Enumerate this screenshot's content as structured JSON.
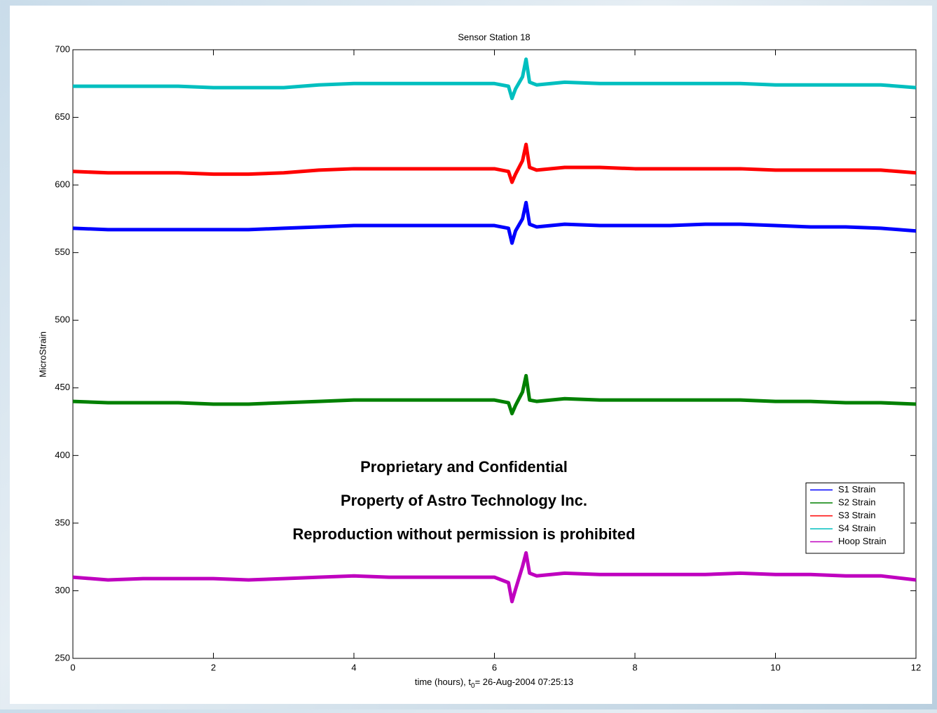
{
  "chart_data": {
    "type": "line",
    "title": "Sensor Station 18",
    "x_label_parts": [
      "time (hours), t",
      "0",
      "= 26-Aug-2004 07:25:13"
    ],
    "y_label": "MicroStrain",
    "annotations": [
      "Proprietary and Confidential",
      "Property of Astro Technology Inc.",
      "Reproduction without permission is prohibited"
    ],
    "x": [
      0,
      0.5,
      1,
      1.5,
      2,
      2.5,
      3,
      3.5,
      4,
      4.5,
      5,
      5.5,
      6,
      6.2,
      6.25,
      6.3,
      6.4,
      6.45,
      6.5,
      6.6,
      7,
      7.5,
      8,
      8.5,
      9,
      9.5,
      10,
      10.5,
      11,
      11.5,
      12
    ],
    "series": [
      {
        "name": "S1 Strain",
        "color": "#0000ff",
        "values": [
          568,
          567,
          567,
          567,
          567,
          567,
          568,
          569,
          570,
          570,
          570,
          570,
          570,
          568,
          557,
          566,
          575,
          587,
          571,
          569,
          571,
          570,
          570,
          570,
          571,
          571,
          570,
          569,
          569,
          568,
          566
        ]
      },
      {
        "name": "S2 Strain",
        "color": "#008000",
        "values": [
          440,
          439,
          439,
          439,
          438,
          438,
          439,
          440,
          441,
          441,
          441,
          441,
          441,
          439,
          431,
          437,
          447,
          459,
          441,
          440,
          442,
          441,
          441,
          441,
          441,
          441,
          440,
          440,
          439,
          439,
          438
        ]
      },
      {
        "name": "S3 Strain",
        "color": "#ff0000",
        "values": [
          610,
          609,
          609,
          609,
          608,
          608,
          609,
          611,
          612,
          612,
          612,
          612,
          612,
          610,
          602,
          608,
          618,
          630,
          613,
          611,
          613,
          613,
          612,
          612,
          612,
          612,
          611,
          611,
          611,
          611,
          609
        ]
      },
      {
        "name": "S4 Strain",
        "color": "#00bfbf",
        "values": [
          673,
          673,
          673,
          673,
          672,
          672,
          672,
          674,
          675,
          675,
          675,
          675,
          675,
          673,
          664,
          671,
          680,
          693,
          676,
          674,
          676,
          675,
          675,
          675,
          675,
          675,
          674,
          674,
          674,
          674,
          672
        ]
      },
      {
        "name": "Hoop Strain",
        "color": "#bf00bf",
        "values": [
          310,
          308,
          309,
          309,
          309,
          308,
          309,
          310,
          311,
          310,
          310,
          310,
          310,
          306,
          292,
          301,
          318,
          328,
          313,
          311,
          313,
          312,
          312,
          312,
          312,
          313,
          312,
          312,
          311,
          311,
          308
        ]
      }
    ],
    "xlim": [
      0,
      12
    ],
    "xticks": [
      0,
      2,
      4,
      6,
      8,
      10,
      12
    ],
    "ylim": [
      250,
      700
    ],
    "yticks": [
      250,
      300,
      350,
      400,
      450,
      500,
      550,
      600,
      650,
      700
    ],
    "grid": false,
    "legend": "lower right"
  }
}
